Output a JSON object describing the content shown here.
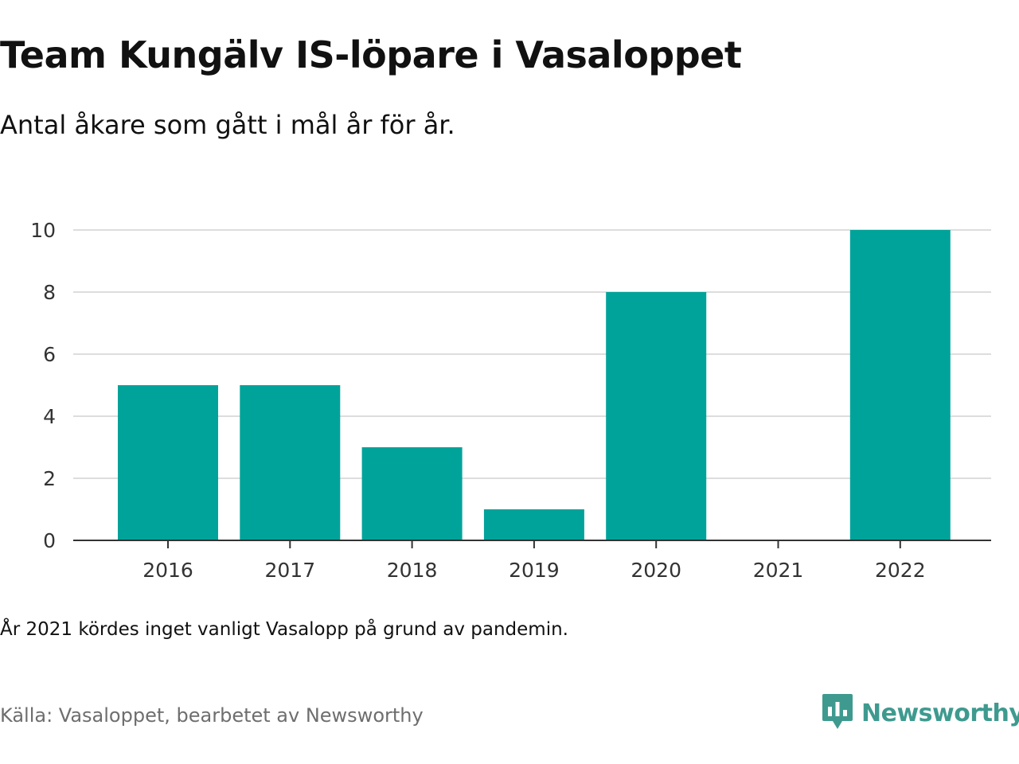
{
  "title": "Team Kungälv IS-löpare i Vasaloppet",
  "subtitle": "Antal åkare som gått i mål år för år.",
  "note": "År 2021 kördes inget vanligt Vasalopp på grund av pandemin.",
  "source": "Källa: Vasaloppet, bearbetet av Newsworthy",
  "brand": {
    "name": "Newsworthy",
    "icon": "newsworthy-logo-icon"
  },
  "colors": {
    "bar": "#00a39a",
    "brand": "#3e9a8f",
    "grid": "#dddddd",
    "axis": "#333333"
  },
  "chart_data": {
    "type": "bar",
    "categories": [
      "2016",
      "2017",
      "2018",
      "2019",
      "2020",
      "2021",
      "2022"
    ],
    "values": [
      5,
      5,
      3,
      1,
      8,
      0,
      10
    ],
    "yticks": [
      "0",
      "2",
      "4",
      "6",
      "8",
      "10"
    ],
    "ylim": [
      0,
      10
    ],
    "grid": true,
    "legend": "none"
  }
}
